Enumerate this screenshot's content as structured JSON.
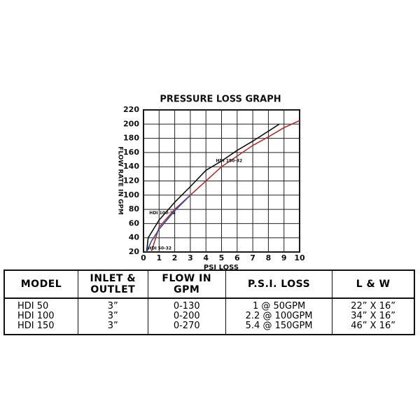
{
  "chart_data": {
    "type": "line",
    "title": "PRESSURE LOSS GRAPH",
    "x_label": "PSI LOSS",
    "y_label": "FLOW RATE IN GPM",
    "xlim": [
      0,
      10
    ],
    "xticks": [
      0,
      1,
      2,
      3,
      4,
      5,
      6,
      7,
      8,
      9,
      10
    ],
    "ylim": [
      20,
      220
    ],
    "yticks": [
      20,
      40,
      60,
      80,
      100,
      120,
      140,
      160,
      180,
      200,
      220
    ],
    "grid": true,
    "series": [
      {
        "name": "HDI 100-32",
        "color": "#111111",
        "x": [
          0.2,
          0.3,
          1,
          2,
          3,
          4,
          5,
          6,
          7,
          8,
          8.7
        ],
        "values": [
          20,
          40,
          65,
          90,
          112,
          135,
          148,
          163,
          176,
          190,
          200
        ]
      },
      {
        "name": "HDI 150-32",
        "color": "#b03030",
        "x": [
          0.5,
          1,
          2,
          3,
          4,
          5,
          6,
          7,
          8,
          9,
          10
        ],
        "values": [
          20,
          55,
          80,
          100,
          120,
          140,
          155,
          170,
          182,
          195,
          205
        ]
      },
      {
        "name": "HDI 50-32",
        "color": "#3050a0",
        "x": [
          0.2,
          0.5,
          1,
          2,
          3
        ],
        "values": [
          20,
          35,
          52,
          78,
          100
        ]
      }
    ]
  },
  "table": {
    "header": [
      "MODEL",
      "INLET & OUTLET",
      "FLOW IN GPM",
      "P.S.I. LOSS",
      "L & W"
    ],
    "rows": [
      [
        "HDI 50",
        "3”",
        "0-130",
        "1 @ 50GPM",
        "22” X 16”"
      ],
      [
        "HDI 100",
        "3”",
        "0-200",
        "2.2 @ 100GPM",
        "34” X 16”"
      ],
      [
        "HDI 150",
        "3”",
        "0-270",
        "5.4 @ 150GPM",
        "46” X 16”"
      ]
    ]
  }
}
